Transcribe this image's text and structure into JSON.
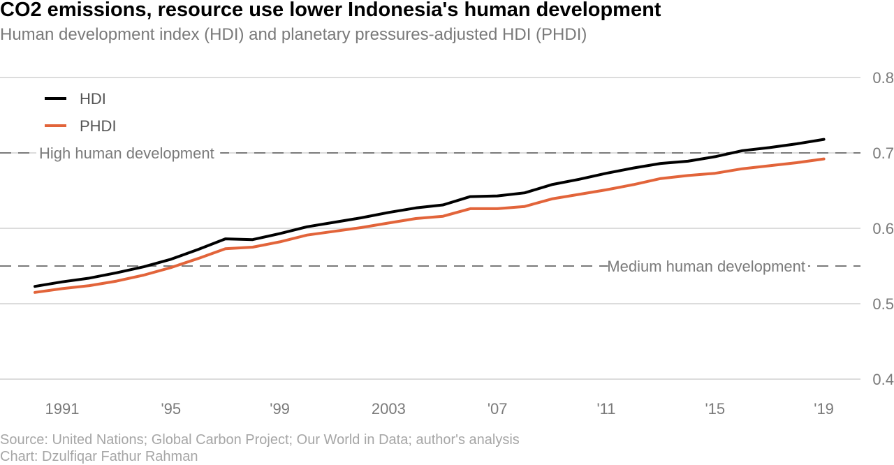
{
  "chart_data": {
    "type": "line",
    "title": "CO2 emissions, resource use lower Indonesia's human development",
    "subtitle": "Human development index (HDI) and planetary pressures-adjusted HDI (PHDI)",
    "x": [
      1990,
      1991,
      1992,
      1993,
      1994,
      1995,
      1996,
      1997,
      1998,
      1999,
      2000,
      2001,
      2002,
      2003,
      2004,
      2005,
      2006,
      2007,
      2008,
      2009,
      2010,
      2011,
      2012,
      2013,
      2014,
      2015,
      2016,
      2017,
      2018,
      2019
    ],
    "series": [
      {
        "name": "HDI",
        "color": "#000000",
        "values": [
          0.523,
          0.529,
          0.534,
          0.541,
          0.549,
          0.559,
          0.572,
          0.586,
          0.585,
          0.593,
          0.602,
          0.608,
          0.614,
          0.621,
          0.627,
          0.631,
          0.642,
          0.643,
          0.647,
          0.658,
          0.665,
          0.673,
          0.68,
          0.686,
          0.689,
          0.695,
          0.703,
          0.707,
          0.712,
          0.718
        ]
      },
      {
        "name": "PHDI",
        "color": "#e2643a",
        "values": [
          0.515,
          0.52,
          0.524,
          0.53,
          0.538,
          0.548,
          0.56,
          0.573,
          0.575,
          0.582,
          0.591,
          0.596,
          0.601,
          0.607,
          0.613,
          0.616,
          0.626,
          0.626,
          0.629,
          0.639,
          0.645,
          0.651,
          0.658,
          0.666,
          0.67,
          0.673,
          0.679,
          0.683,
          0.687,
          0.692
        ]
      }
    ],
    "xticks": [
      {
        "value": 1991,
        "label": "1991"
      },
      {
        "value": 1995,
        "label": "'95"
      },
      {
        "value": 1999,
        "label": "'99"
      },
      {
        "value": 2003,
        "label": "2003"
      },
      {
        "value": 2007,
        "label": "'07"
      },
      {
        "value": 2011,
        "label": "'11"
      },
      {
        "value": 2015,
        "label": "'15"
      },
      {
        "value": 2019,
        "label": "'19"
      }
    ],
    "yticks": [
      {
        "value": 0.4,
        "label": "0.4"
      },
      {
        "value": 0.5,
        "label": "0.5"
      },
      {
        "value": 0.6,
        "label": "0.6"
      },
      {
        "value": 0.7,
        "label": "0.7"
      },
      {
        "value": 0.8,
        "label": "0.8"
      }
    ],
    "ylim": [
      0.4,
      0.8
    ],
    "xlim": [
      1988.9,
      1990.0
    ],
    "y_axis_side": "right",
    "grid": true,
    "legend_position": "top-left",
    "reference_lines": [
      {
        "value": 0.7,
        "label": "High human development",
        "label_align": "left"
      },
      {
        "value": 0.55,
        "label": "Medium human development",
        "label_align": "right"
      }
    ]
  },
  "footer": {
    "source": "Source: United Nations; Global Carbon Project; Our World in Data; author's analysis",
    "credit": "Chart: Dzulfiqar Fathur Rahman"
  },
  "colors": {
    "grid": "#dcdcdc",
    "reference_line": "#7a7a7a",
    "axis_text": "#7a7a7a",
    "hdi": "#000000",
    "phdi": "#e2643a"
  }
}
